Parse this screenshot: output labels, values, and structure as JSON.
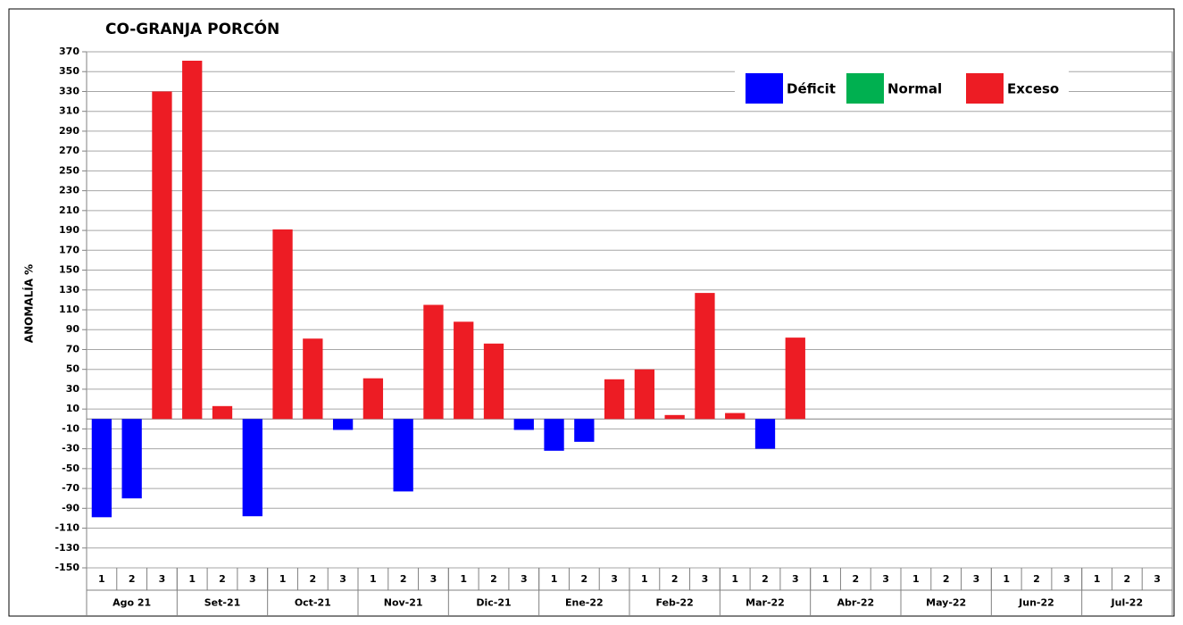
{
  "chart_data": {
    "type": "bar",
    "title": "CO-GRANJA PORCÓN",
    "y_label": "ANOMALÍA %",
    "categories": [
      "1",
      "2",
      "3",
      "1",
      "2",
      "3",
      "1",
      "2",
      "3",
      "1",
      "2",
      "3",
      "1",
      "2",
      "3",
      "1",
      "2",
      "3",
      "1",
      "2",
      "3",
      "1",
      "2",
      "3",
      "1",
      "2",
      "3",
      "1",
      "2",
      "3",
      "1",
      "2",
      "3",
      "1",
      "2",
      "3"
    ],
    "groups": [
      "Ago 21",
      "Set-21",
      "Oct-21",
      "Nov-21",
      "Dic-21",
      "Ene-22",
      "Feb-22",
      "Mar-22",
      "Abr-22",
      "May-22",
      "Jun-22",
      "Jul-22"
    ],
    "series": [
      {
        "name": "Déficit",
        "color": "#0000ff",
        "values": [
          -99,
          -80,
          null,
          null,
          null,
          -98,
          null,
          null,
          -11,
          null,
          -73,
          null,
          null,
          null,
          -11,
          -32,
          -23,
          null,
          null,
          null,
          null,
          null,
          -30,
          null,
          null,
          null,
          null,
          null,
          null,
          null,
          null,
          null,
          null,
          null,
          null,
          null
        ]
      },
      {
        "name": "Normal",
        "color": "#00b050",
        "values": [
          null,
          null,
          null,
          null,
          null,
          null,
          null,
          null,
          null,
          null,
          null,
          null,
          null,
          null,
          null,
          null,
          null,
          null,
          null,
          null,
          null,
          null,
          null,
          null,
          null,
          null,
          null,
          null,
          null,
          null,
          null,
          null,
          null,
          null,
          null,
          null
        ]
      },
      {
        "name": "Exceso",
        "color": "#ed1c24",
        "values": [
          null,
          null,
          330,
          361,
          13,
          null,
          191,
          81,
          null,
          41,
          null,
          115,
          98,
          76,
          null,
          null,
          null,
          40,
          50,
          4,
          127,
          6,
          null,
          82,
          null,
          null,
          null,
          null,
          null,
          null,
          null,
          null,
          null,
          null,
          null,
          null
        ]
      }
    ],
    "ylim": [
      -150,
      370
    ],
    "yticks": [
      -150,
      -130,
      -110,
      -90,
      -70,
      -50,
      -30,
      -10,
      10,
      30,
      50,
      70,
      90,
      110,
      130,
      150,
      170,
      190,
      210,
      230,
      250,
      270,
      290,
      310,
      330,
      350,
      370
    ],
    "grid": true
  }
}
